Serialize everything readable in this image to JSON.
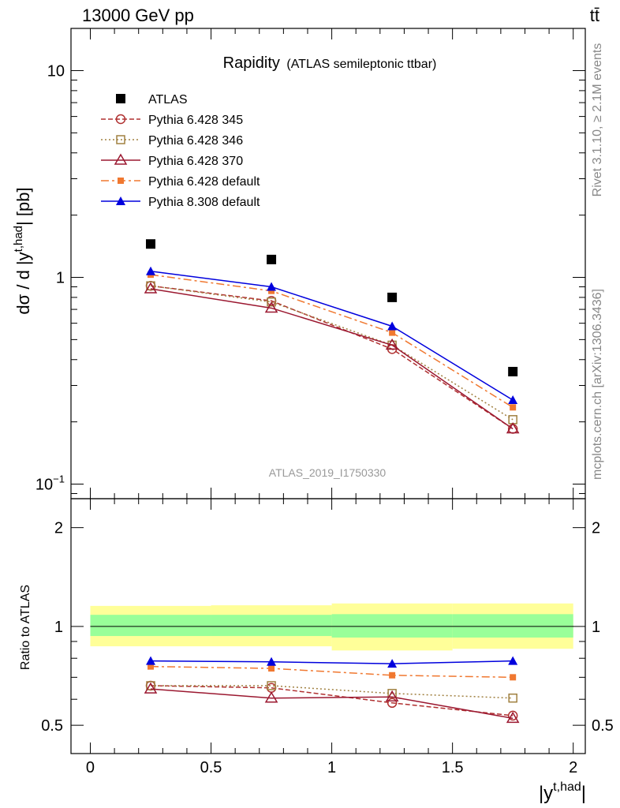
{
  "header": {
    "left": "13000 GeV pp",
    "right": "tt̄"
  },
  "side_labels": {
    "right_upper": "Rivet 3.1.10, ≥ 2.1M events",
    "right_lower": "mcplots.cern.ch [arXiv:1306.3436]"
  },
  "chart_data": [
    {
      "type": "line",
      "title": "Rapidity",
      "subtitle": "(ATLAS semileptonic ttbar)",
      "watermark": "ATLAS_2019_I1750330",
      "ylabel": "dσ / d |y^{t,had}| [pb]",
      "ylabel_parts": {
        "main": "dσ / d |y",
        "sup": "t,had",
        "tail": "| [pb]"
      },
      "yscale": "log",
      "xlim": [
        -0.08,
        2.05
      ],
      "ylim": [
        0.085,
        16
      ],
      "ytick_labels": [
        "10",
        "1",
        "10"
      ],
      "ytick_exponents": [
        "",
        "",
        "−1"
      ],
      "grid": false,
      "legend_position": "top-left",
      "x": [
        0.25,
        0.75,
        1.25,
        1.75
      ],
      "series": [
        {
          "name": "ATLAS",
          "values": [
            1.45,
            1.22,
            0.8,
            0.35
          ],
          "color": "#000000",
          "marker": "filled-square",
          "line": "none"
        },
        {
          "name": "Pythia 6.428 345",
          "values": [
            0.91,
            0.77,
            0.45,
            0.185
          ],
          "color": "#b03030",
          "marker": "open-circle",
          "line": "dashed"
        },
        {
          "name": "Pythia 6.428 346",
          "values": [
            0.91,
            0.76,
            0.47,
            0.205
          ],
          "color": "#a08040",
          "marker": "open-square",
          "line": "dotted"
        },
        {
          "name": "Pythia 6.428 370",
          "values": [
            0.88,
            0.71,
            0.47,
            0.185
          ],
          "color": "#9b1830",
          "marker": "open-triangle",
          "line": "solid"
        },
        {
          "name": "Pythia 6.428 default",
          "values": [
            1.03,
            0.86,
            0.54,
            0.235
          ],
          "color": "#f07830",
          "marker": "filled-square-small",
          "line": "dashdot"
        },
        {
          "name": "Pythia 8.308 default",
          "values": [
            1.07,
            0.9,
            0.58,
            0.255
          ],
          "color": "#0000dd",
          "marker": "filled-triangle",
          "line": "solid"
        }
      ]
    },
    {
      "type": "line",
      "ylabel": "Ratio to ATLAS",
      "xlabel": "|y^{t,had}|",
      "xlabel_parts": {
        "main": "|y",
        "sup": "t,had",
        "tail": "|"
      },
      "yscale": "log",
      "xlim": [
        -0.08,
        2.05
      ],
      "ylim": [
        0.41,
        2.45
      ],
      "xtick_labels": [
        "0",
        "0.5",
        "1",
        "1.5",
        "2"
      ],
      "ytick_labels": [
        "0.5",
        "1",
        "2"
      ],
      "grid": false,
      "x": [
        0.25,
        0.75,
        1.25,
        1.75
      ],
      "reference_line": 1,
      "uncertainty_bands": [
        {
          "x_edges": [
            0,
            0.5,
            1,
            1.5,
            2
          ],
          "inner_low": [
            0.935,
            0.935,
            0.925,
            0.925
          ],
          "inner_high": [
            1.085,
            1.085,
            1.09,
            1.09
          ],
          "outer_low": [
            0.87,
            0.87,
            0.845,
            0.855
          ],
          "outer_high": [
            1.155,
            1.16,
            1.175,
            1.175
          ],
          "inner_color": "#99ff99",
          "outer_color": "#ffff99"
        }
      ],
      "series": [
        {
          "name": "Pythia 6.428 345",
          "values": [
            0.66,
            0.65,
            0.585,
            0.535
          ],
          "color": "#b03030",
          "marker": "open-circle",
          "line": "dashed"
        },
        {
          "name": "Pythia 6.428 346",
          "values": [
            0.66,
            0.66,
            0.625,
            0.605
          ],
          "color": "#a08040",
          "marker": "open-square",
          "line": "dotted"
        },
        {
          "name": "Pythia 6.428 370",
          "values": [
            0.645,
            0.605,
            0.61,
            0.525
          ],
          "color": "#9b1830",
          "marker": "open-triangle",
          "line": "solid"
        },
        {
          "name": "Pythia 6.428 default",
          "values": [
            0.755,
            0.745,
            0.71,
            0.7
          ],
          "color": "#f07830",
          "marker": "filled-square-small",
          "line": "dashdot"
        },
        {
          "name": "Pythia 8.308 default",
          "values": [
            0.785,
            0.78,
            0.77,
            0.785
          ],
          "color": "#0000dd",
          "marker": "filled-triangle",
          "line": "solid"
        }
      ]
    }
  ]
}
